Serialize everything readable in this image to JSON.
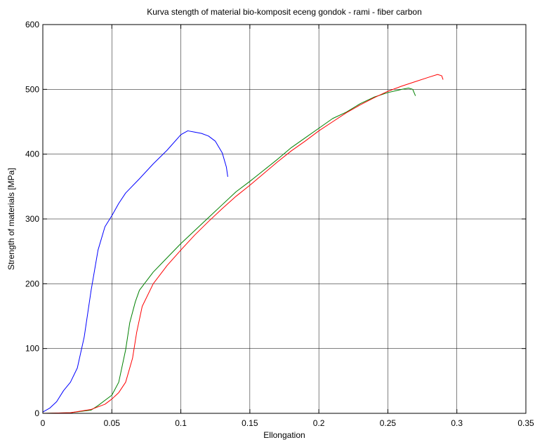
{
  "chart_data": {
    "type": "line",
    "title": "Kurva stength of material bio-komposit eceng gondok - rami - fiber carbon",
    "xlabel": "Ellongation",
    "ylabel": "Strength of materials [MPa]",
    "xlim": [
      0,
      0.35
    ],
    "ylim": [
      0,
      600
    ],
    "xticks": [
      0,
      0.05,
      0.1,
      0.15,
      0.2,
      0.25,
      0.3,
      0.35
    ],
    "xtick_labels": [
      "0",
      "0.05",
      "0.1",
      "0.15",
      "0.2",
      "0.25",
      "0.3",
      "0.35"
    ],
    "yticks": [
      0,
      100,
      200,
      300,
      400,
      500,
      600
    ],
    "ytick_labels": [
      "0",
      "100",
      "200",
      "300",
      "400",
      "500",
      "600"
    ],
    "grid": true,
    "legend": "none",
    "series": [
      {
        "color": "#0000ff",
        "points": [
          [
            0,
            2
          ],
          [
            0.005,
            8
          ],
          [
            0.01,
            18
          ],
          [
            0.015,
            35
          ],
          [
            0.02,
            48
          ],
          [
            0.025,
            70
          ],
          [
            0.03,
            118
          ],
          [
            0.035,
            190
          ],
          [
            0.04,
            252
          ],
          [
            0.045,
            288
          ],
          [
            0.05,
            305
          ],
          [
            0.055,
            324
          ],
          [
            0.06,
            340
          ],
          [
            0.07,
            362
          ],
          [
            0.08,
            385
          ],
          [
            0.09,
            406
          ],
          [
            0.1,
            430
          ],
          [
            0.105,
            436
          ],
          [
            0.11,
            434
          ],
          [
            0.115,
            432
          ],
          [
            0.12,
            428
          ],
          [
            0.125,
            420
          ],
          [
            0.13,
            402
          ],
          [
            0.133,
            380
          ],
          [
            0.134,
            365
          ]
        ]
      },
      {
        "color": "#008000",
        "points": [
          [
            0,
            0
          ],
          [
            0.02,
            1
          ],
          [
            0.035,
            5
          ],
          [
            0.04,
            12
          ],
          [
            0.045,
            20
          ],
          [
            0.05,
            28
          ],
          [
            0.055,
            48
          ],
          [
            0.06,
            98
          ],
          [
            0.063,
            140
          ],
          [
            0.067,
            172
          ],
          [
            0.07,
            190
          ],
          [
            0.08,
            218
          ],
          [
            0.09,
            240
          ],
          [
            0.1,
            262
          ],
          [
            0.11,
            282
          ],
          [
            0.12,
            302
          ],
          [
            0.13,
            322
          ],
          [
            0.14,
            342
          ],
          [
            0.15,
            358
          ],
          [
            0.16,
            375
          ],
          [
            0.17,
            392
          ],
          [
            0.18,
            410
          ],
          [
            0.19,
            425
          ],
          [
            0.2,
            440
          ],
          [
            0.21,
            455
          ],
          [
            0.22,
            465
          ],
          [
            0.23,
            478
          ],
          [
            0.24,
            488
          ],
          [
            0.25,
            495
          ],
          [
            0.26,
            500
          ],
          [
            0.265,
            502
          ],
          [
            0.268,
            500
          ],
          [
            0.27,
            490
          ]
        ]
      },
      {
        "color": "#ff0000",
        "points": [
          [
            0,
            0
          ],
          [
            0.02,
            1
          ],
          [
            0.035,
            6
          ],
          [
            0.045,
            14
          ],
          [
            0.05,
            22
          ],
          [
            0.055,
            32
          ],
          [
            0.06,
            48
          ],
          [
            0.065,
            85
          ],
          [
            0.068,
            125
          ],
          [
            0.072,
            165
          ],
          [
            0.08,
            200
          ],
          [
            0.09,
            228
          ],
          [
            0.1,
            252
          ],
          [
            0.11,
            275
          ],
          [
            0.12,
            296
          ],
          [
            0.13,
            316
          ],
          [
            0.14,
            335
          ],
          [
            0.15,
            352
          ],
          [
            0.16,
            370
          ],
          [
            0.17,
            388
          ],
          [
            0.18,
            405
          ],
          [
            0.19,
            420
          ],
          [
            0.2,
            436
          ],
          [
            0.21,
            450
          ],
          [
            0.22,
            464
          ],
          [
            0.23,
            476
          ],
          [
            0.24,
            487
          ],
          [
            0.25,
            497
          ],
          [
            0.26,
            505
          ],
          [
            0.27,
            512
          ],
          [
            0.28,
            519
          ],
          [
            0.286,
            523
          ],
          [
            0.289,
            521
          ],
          [
            0.29,
            515
          ]
        ]
      }
    ]
  }
}
